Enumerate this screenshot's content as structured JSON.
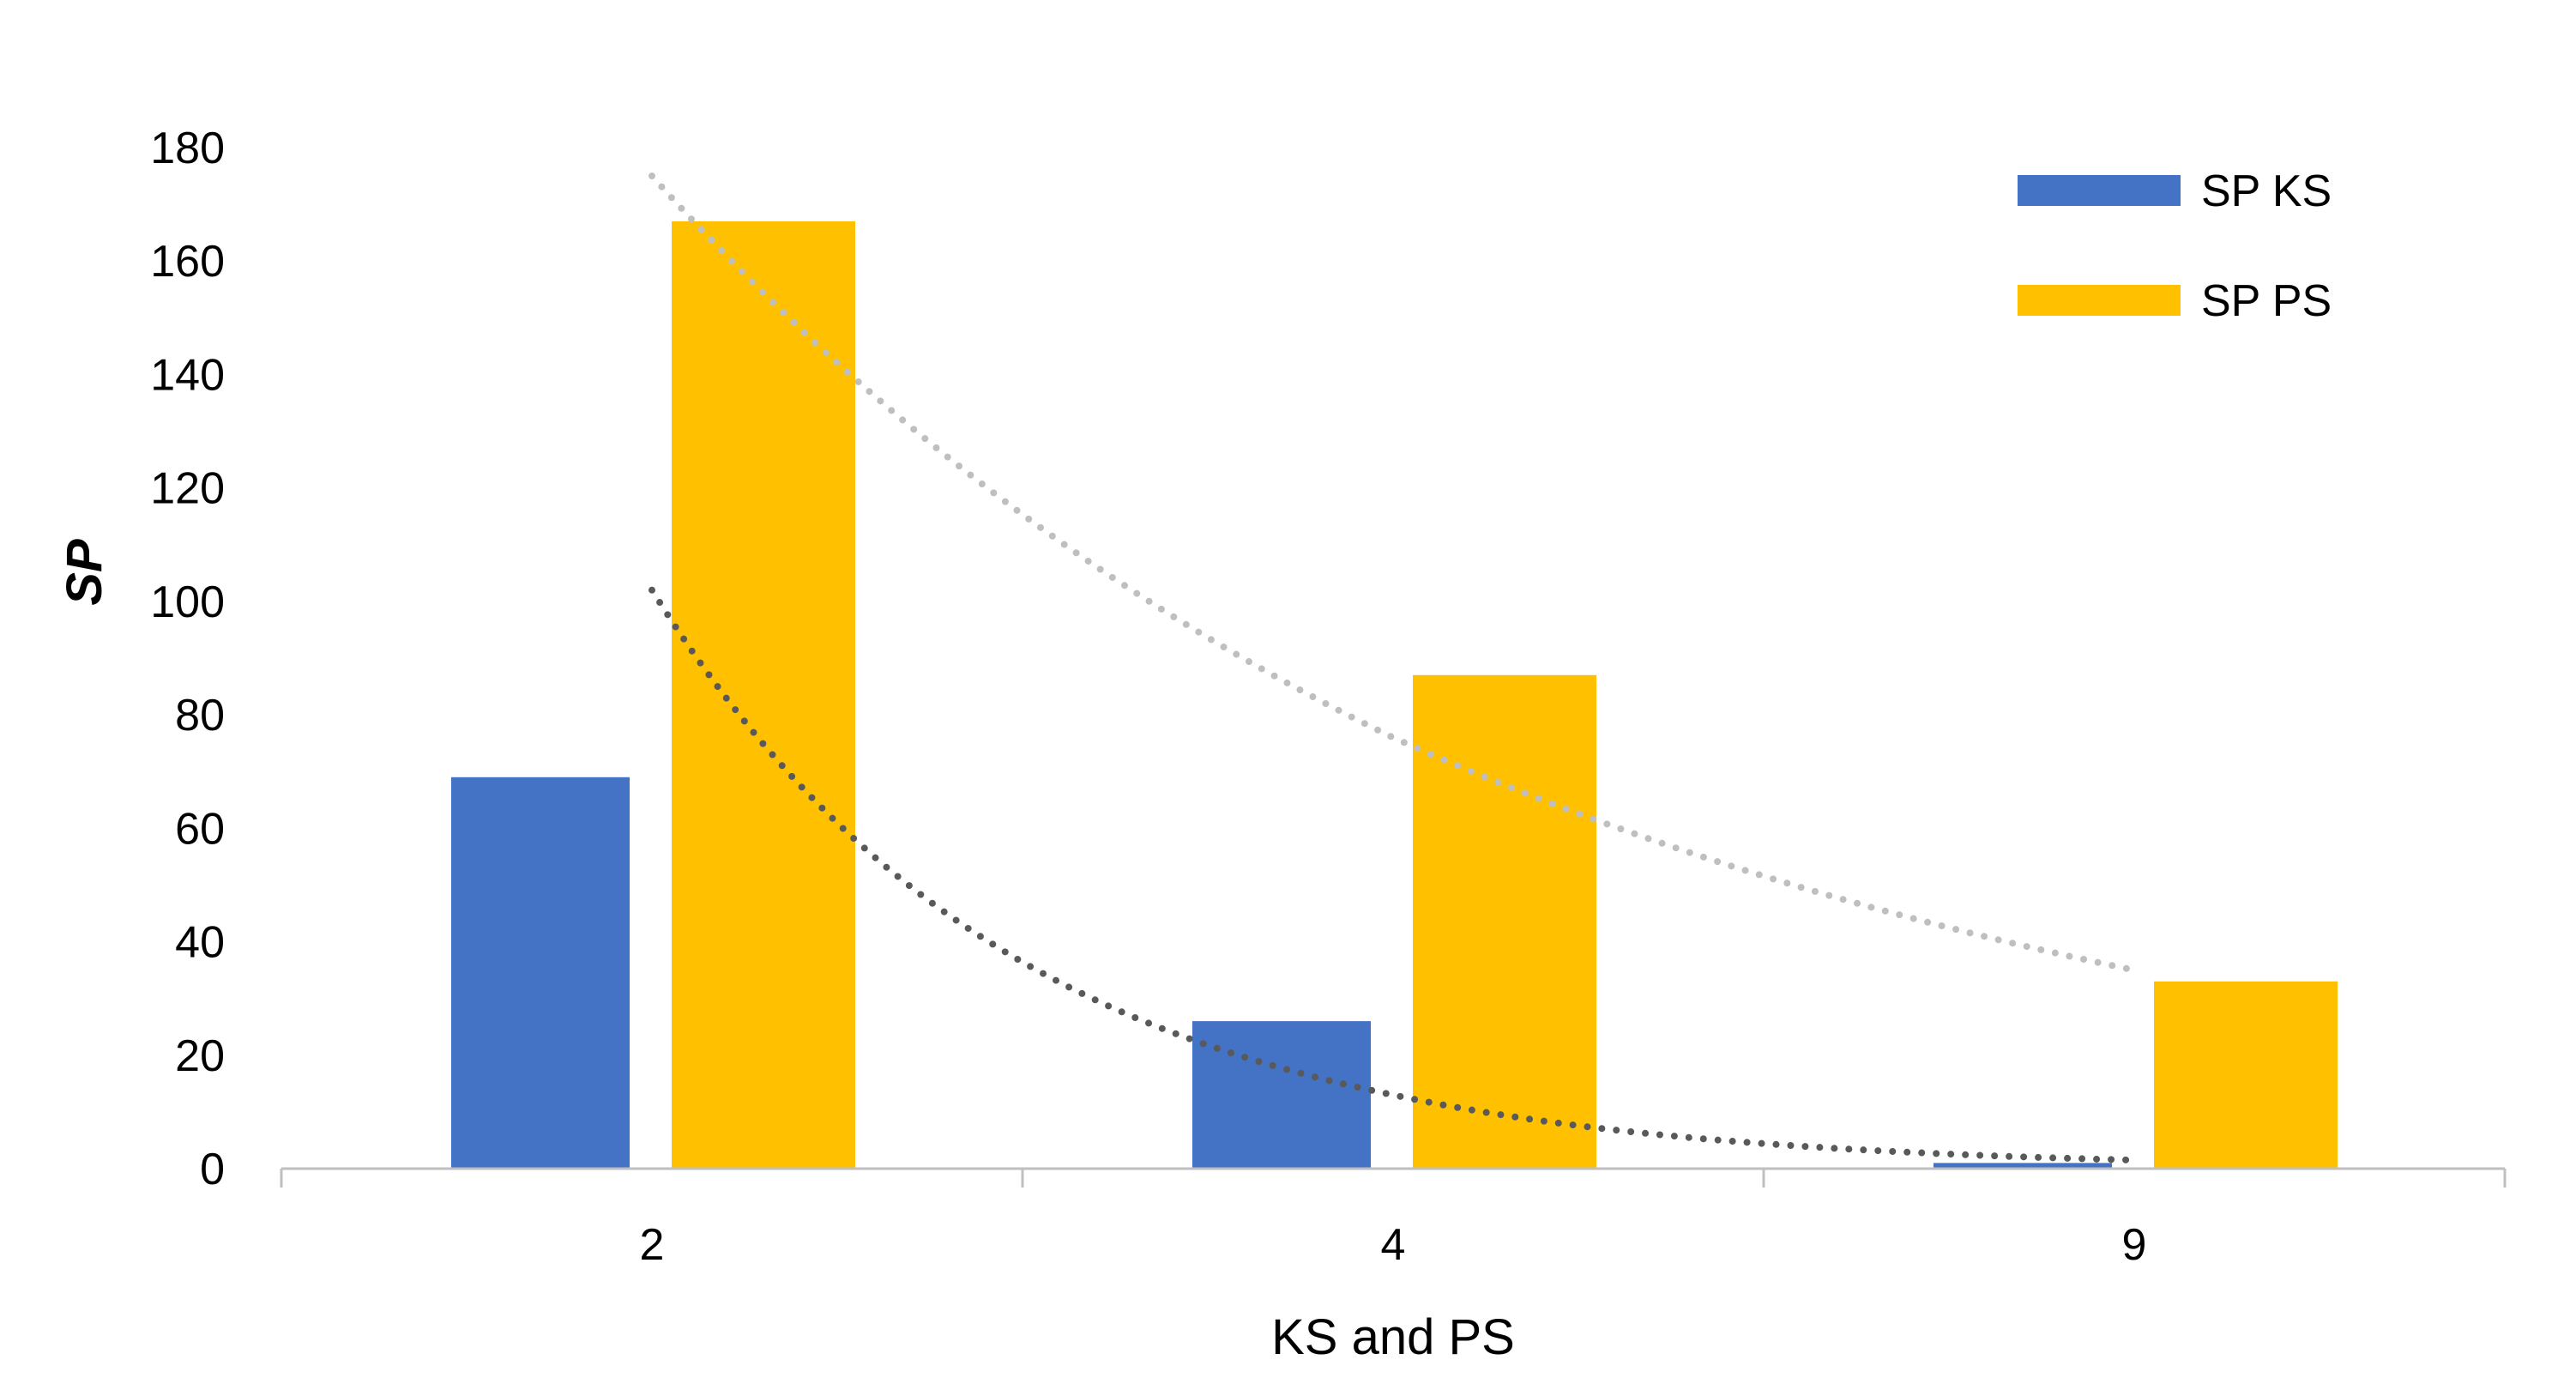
{
  "chart_data": {
    "type": "bar",
    "categories": [
      "2",
      "4",
      "9"
    ],
    "series": [
      {
        "name": "SP KS",
        "values": [
          69,
          26,
          1
        ],
        "color": "#4472C4"
      },
      {
        "name": "SP PS",
        "values": [
          167,
          87,
          33
        ],
        "color": "#FFC000"
      }
    ],
    "trendlines": [
      {
        "series": "SP KS",
        "type": "exponential",
        "style": "dotted",
        "color": "#595959",
        "values": [
          102,
          13,
          1.5
        ]
      },
      {
        "series": "SP PS",
        "type": "exponential",
        "style": "dotted",
        "color": "#BFBFBF",
        "values": [
          175,
          76,
          35
        ]
      }
    ],
    "title": "",
    "xlabel": "KS and PS",
    "ylabel": "SP",
    "ylim": [
      0,
      180
    ],
    "yticks": [
      "0",
      "20",
      "40",
      "60",
      "80",
      "100",
      "120",
      "140",
      "160",
      "180"
    ],
    "grid": false,
    "legend_position": "top-right"
  }
}
